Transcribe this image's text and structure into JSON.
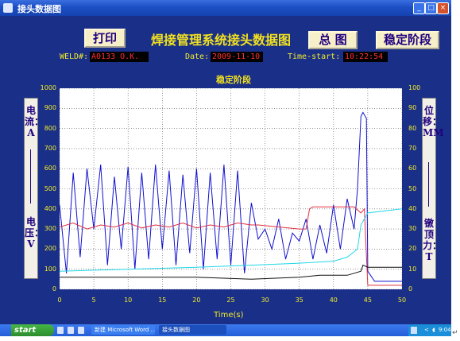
{
  "window": {
    "title": "接头数据图"
  },
  "toolbar": {
    "print_label": "打印",
    "overview_label": "总 图",
    "stable_label": "稳定阶段"
  },
  "app_title": "焊接管理系统接头数据图",
  "info": {
    "weld_label": "WELD#:",
    "weld_value": "A0133  O.K.",
    "date_label": "Date:",
    "date_value": "2009-11-10",
    "time_label": "Time-start:",
    "time_value": "10:22:54"
  },
  "side_labels": {
    "left_top": "电流：A",
    "left_bottom": "电压：V",
    "right_top": "位移：MM",
    "right_bottom": "镦顶力：T"
  },
  "taskbar": {
    "start_label": "start",
    "task1": "新建 Microsoft Word ...",
    "task2": "接头数据图",
    "clock": "9:04"
  },
  "colors": {
    "background": "#1a2f88",
    "label": "#f2ec2a",
    "value_text": "#ff3030",
    "current": "#1010d0",
    "voltage": "#e03040",
    "displacement": "#20d8e8",
    "force": "#101010"
  },
  "chart_data": {
    "type": "line",
    "title": "稳定阶段",
    "xlabel": "Time(s)",
    "xlim": [
      0,
      50
    ],
    "x_ticks": [
      0,
      5,
      10,
      15,
      20,
      25,
      30,
      35,
      40,
      45,
      50
    ],
    "ylim_left": [
      0,
      1000
    ],
    "y_ticks_left": [
      0,
      100,
      200,
      300,
      400,
      500,
      600,
      700,
      800,
      900,
      1000
    ],
    "ylim_right": [
      0,
      100
    ],
    "y_ticks_right": [
      0,
      10,
      20,
      30,
      40,
      50,
      60,
      70,
      80,
      90,
      100
    ],
    "grid": true,
    "series": [
      {
        "name": "电流",
        "axis": "left",
        "color": "#1010d0",
        "x": [
          0,
          1,
          2,
          3,
          4,
          5,
          6,
          7,
          8,
          9,
          10,
          11,
          12,
          13,
          14,
          15,
          16,
          17,
          18,
          19,
          20,
          21,
          22,
          23,
          24,
          25,
          26,
          27,
          28,
          29,
          30,
          31,
          32,
          33,
          34,
          35,
          36,
          37,
          38,
          39,
          40,
          41,
          42,
          43,
          43.5,
          44,
          44.3,
          44.8,
          45,
          46,
          50
        ],
        "y": [
          420,
          80,
          580,
          160,
          600,
          300,
          620,
          120,
          560,
          200,
          610,
          100,
          580,
          150,
          620,
          200,
          590,
          120,
          570,
          180,
          600,
          100,
          580,
          150,
          620,
          120,
          590,
          80,
          430,
          250,
          300,
          200,
          350,
          150,
          280,
          240,
          350,
          150,
          320,
          180,
          420,
          200,
          450,
          300,
          500,
          860,
          880,
          850,
          90,
          40,
          40
        ]
      },
      {
        "name": "电压",
        "axis": "left",
        "color": "#e03040",
        "x": [
          0,
          2,
          4,
          6,
          8,
          10,
          12,
          14,
          16,
          18,
          20,
          22,
          24,
          26,
          28,
          29,
          35,
          36,
          36.5,
          37,
          43,
          44,
          44.5,
          45,
          50
        ],
        "y": [
          310,
          330,
          300,
          320,
          310,
          330,
          305,
          320,
          310,
          330,
          305,
          320,
          310,
          330,
          320,
          320,
          300,
          300,
          400,
          410,
          410,
          380,
          400,
          20,
          20
        ]
      },
      {
        "name": "位移",
        "axis": "right",
        "color": "#20d8e8",
        "x": [
          0,
          10,
          20,
          28,
          35,
          40,
          42,
          43.5,
          44,
          45,
          50
        ],
        "y": [
          9,
          10,
          11,
          12,
          13,
          14,
          16,
          20,
          32,
          38,
          40
        ]
      },
      {
        "name": "镦顶力",
        "axis": "right",
        "color": "#101010",
        "x": [
          0,
          10,
          20,
          28,
          35,
          38,
          42,
          43,
          44,
          44.3,
          45,
          50
        ],
        "y": [
          6,
          6,
          6,
          5,
          6,
          7,
          7,
          8,
          9,
          12,
          11,
          11
        ]
      }
    ]
  }
}
